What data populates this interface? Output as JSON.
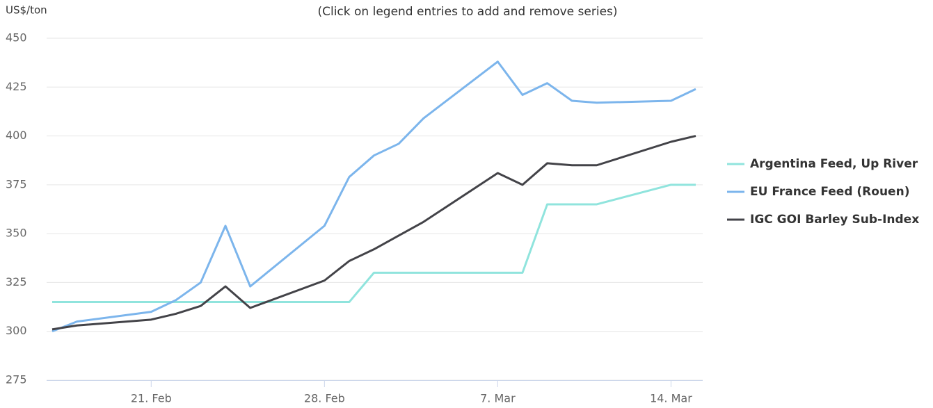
{
  "chart_data": {
    "type": "line",
    "subtitle": "(Click on legend entries to add and remove series)",
    "y_label": "US$/ton",
    "x": [
      "17. Feb",
      "18. Feb",
      "21. Feb",
      "22. Feb",
      "23. Feb",
      "24. Feb",
      "25. Feb",
      "28. Feb",
      "1. Mar",
      "2. Mar",
      "3. Mar",
      "4. Mar",
      "7. Mar",
      "8. Mar",
      "9. Mar",
      "10. Mar",
      "11. Mar",
      "14. Mar",
      "15. Mar"
    ],
    "series": [
      {
        "name": "Argentina Feed, Up River",
        "color": "#90e4dd",
        "values": [
          315,
          315,
          315,
          315,
          315,
          315,
          315,
          315,
          315,
          330,
          330,
          330,
          330,
          330,
          365,
          365,
          365,
          375,
          375
        ]
      },
      {
        "name": "EU France Feed (Rouen)",
        "color": "#7cb5ec",
        "values": [
          300,
          305,
          310,
          316,
          325,
          354,
          323,
          354,
          379,
          390,
          396,
          409,
          438,
          421,
          427,
          418,
          417,
          418,
          424
        ]
      },
      {
        "name": "IGC GOI Barley Sub-Index",
        "color": "#434348",
        "values": [
          301,
          303,
          306,
          309,
          313,
          323,
          312,
          326,
          336,
          342,
          349,
          356,
          381,
          375,
          386,
          385,
          385,
          397,
          400
        ]
      }
    ],
    "xlim": [
      "17. Feb",
      "15. Mar"
    ],
    "xticks": [
      "21. Feb",
      "28. Feb",
      "7. Mar",
      "14. Mar"
    ],
    "ylim": [
      275,
      450
    ],
    "yticks": [
      275,
      300,
      325,
      350,
      375,
      400,
      425,
      450
    ],
    "grid": true,
    "legend": "right"
  }
}
